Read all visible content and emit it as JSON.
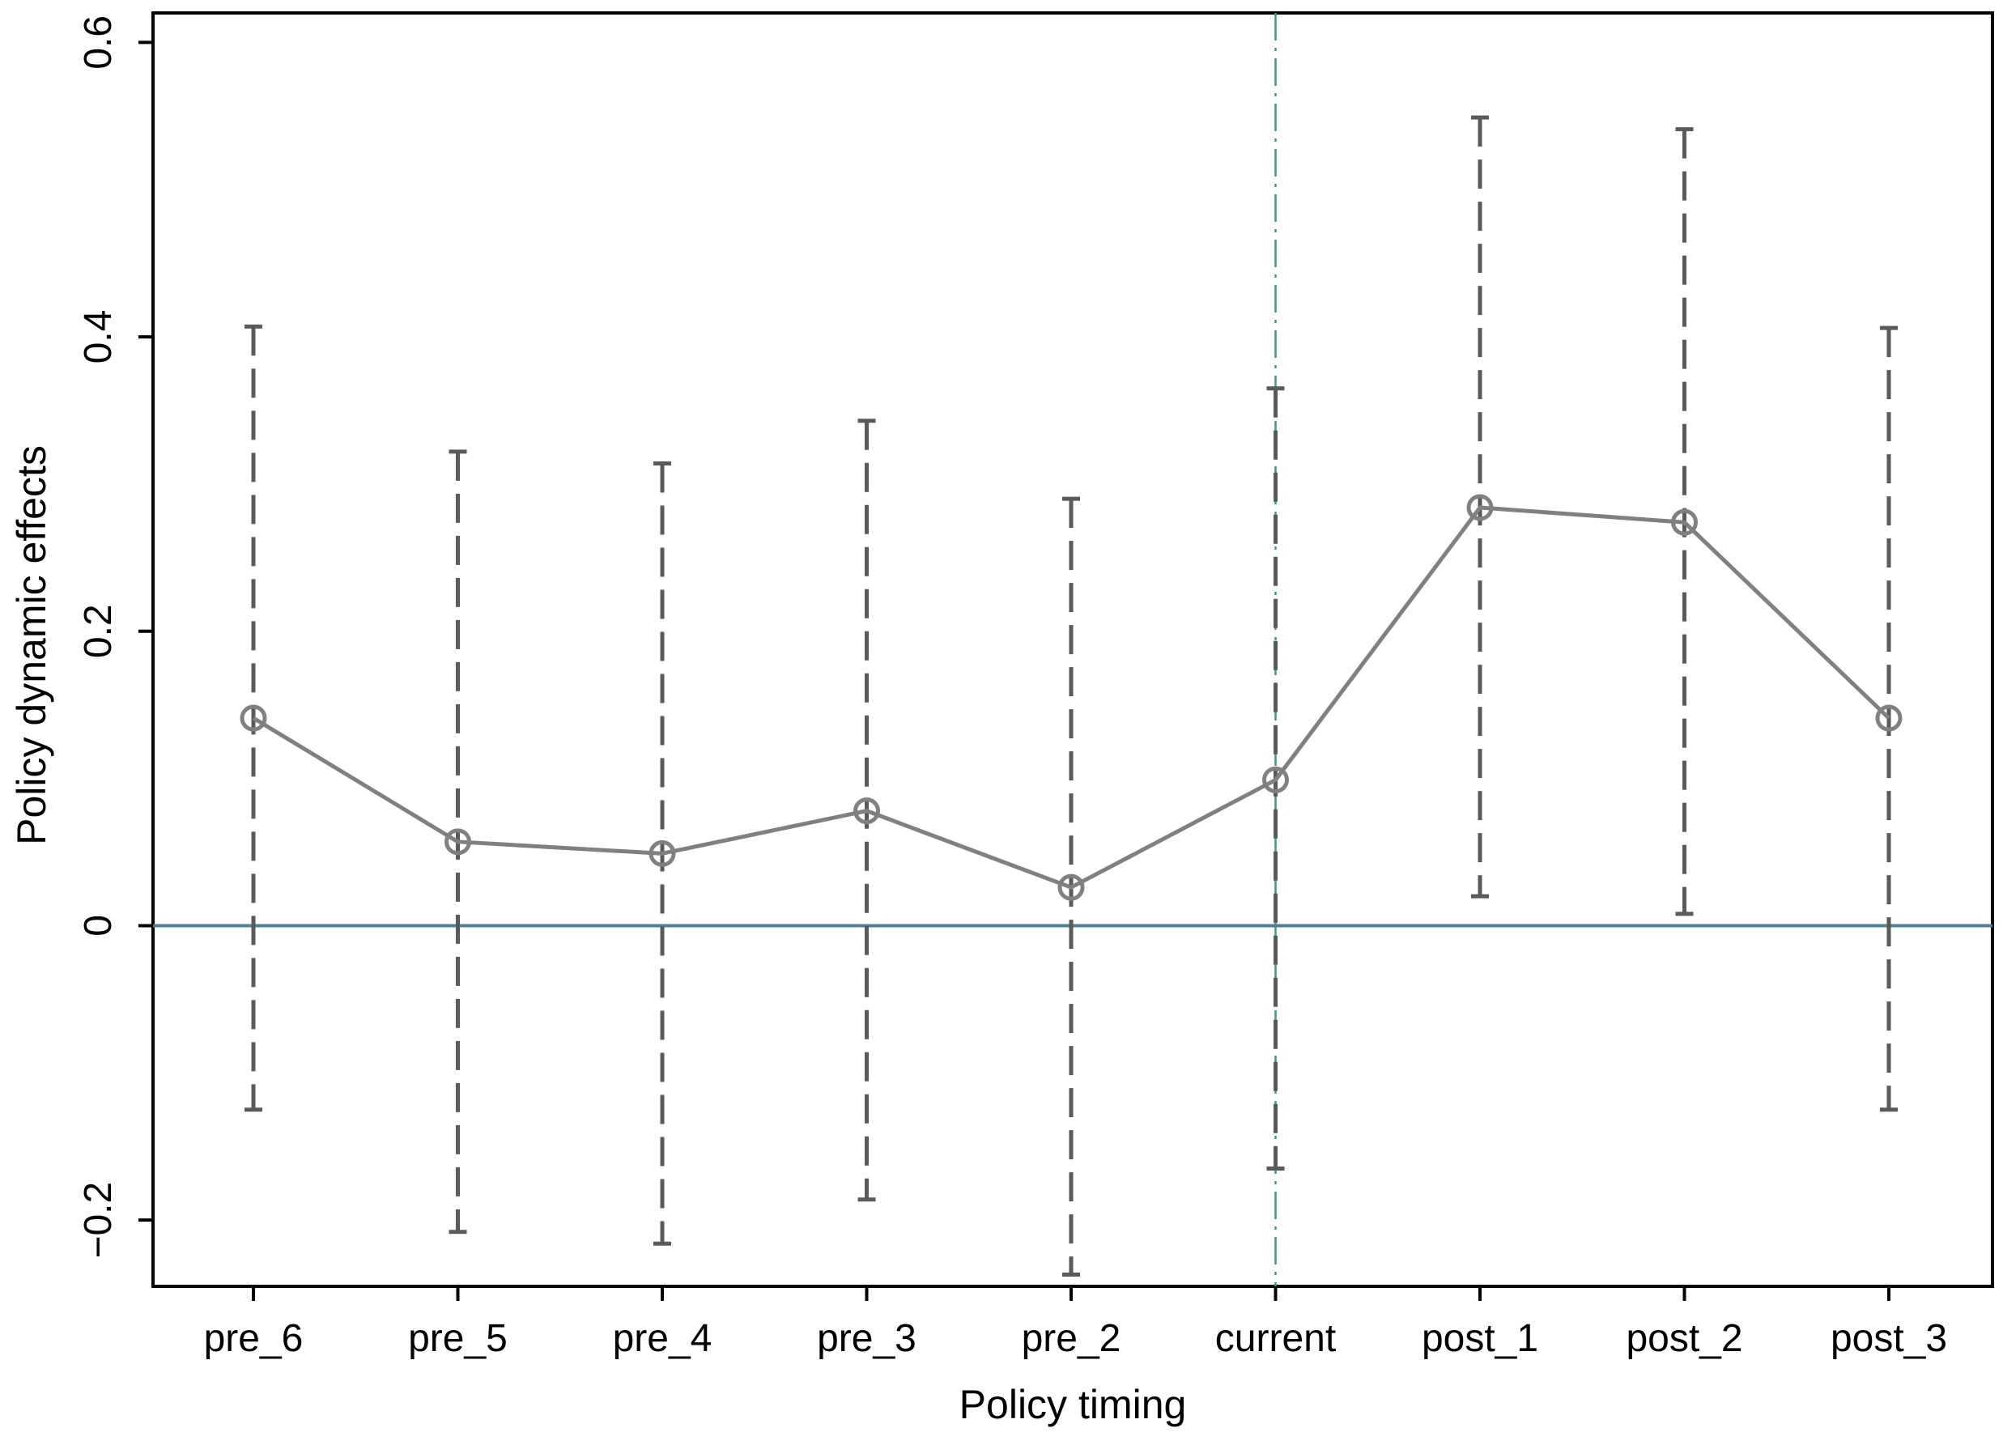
{
  "chart_data": {
    "type": "line",
    "xlabel": "Policy timing",
    "ylabel": "Policy dynamic effects",
    "categories": [
      "pre_6",
      "pre_5",
      "pre_4",
      "pre_3",
      "pre_2",
      "current",
      "post_1",
      "post_2",
      "post_3"
    ],
    "series": [
      {
        "values": [
          0.141,
          0.057,
          0.049,
          0.078,
          0.026,
          0.099,
          0.284,
          0.274,
          0.141
        ],
        "ci_lower": [
          -0.125,
          -0.208,
          -0.216,
          -0.186,
          -0.237,
          -0.165,
          0.02,
          0.008,
          -0.125
        ],
        "ci_upper": [
          0.407,
          0.322,
          0.314,
          0.343,
          0.29,
          0.365,
          0.549,
          0.541,
          0.406
        ]
      }
    ],
    "ylim": [
      -0.245,
      0.62
    ],
    "yticks": [
      -0.2,
      0,
      0.2,
      0.4,
      0.6
    ],
    "ytick_labels": [
      "−0.2",
      "0",
      "0.2",
      "0.4",
      "0.6"
    ],
    "reference_lines": {
      "horizontal_y": 0,
      "vertical_at_category": "current"
    },
    "grid": false,
    "legend": "none",
    "colors": {
      "series": "#808080",
      "ci": "#5a5a5a",
      "zero_line": "#4f7f95",
      "vertical_line": "#4f8f80",
      "axes": "#000000"
    }
  }
}
